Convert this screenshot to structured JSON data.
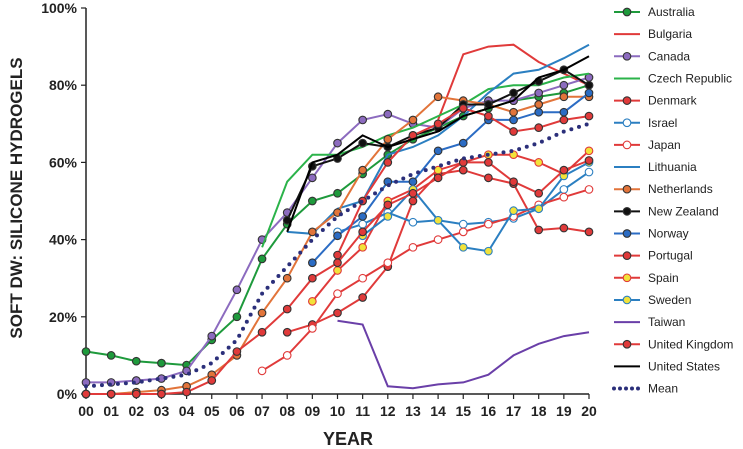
{
  "chart_data": {
    "type": "line",
    "xlabel": "YEAR",
    "ylabel": "SOFT DW: SILICONE HYDROGELS",
    "ylim": [
      0,
      100
    ],
    "y_ticks": [
      "0%",
      "20%",
      "40%",
      "60%",
      "80%",
      "100%"
    ],
    "categories": [
      "00",
      "01",
      "02",
      "03",
      "04",
      "05",
      "06",
      "07",
      "08",
      "09",
      "10",
      "11",
      "12",
      "13",
      "14",
      "15",
      "16",
      "17",
      "18",
      "19",
      "20"
    ],
    "grid": false,
    "legend_position": "right",
    "series": [
      {
        "name": "Australia",
        "color": "#1e9a3c",
        "marker": "circle",
        "values": [
          11,
          10,
          8.5,
          8,
          7.5,
          14,
          20,
          35,
          44,
          50,
          52,
          57,
          62,
          66,
          69,
          72,
          74,
          76,
          77,
          78,
          80
        ]
      },
      {
        "name": "Bulgaria",
        "color": "#e03a3a",
        "marker": "none",
        "values": [
          null,
          null,
          null,
          null,
          null,
          null,
          null,
          null,
          null,
          null,
          null,
          null,
          null,
          null,
          71,
          88,
          90,
          90.5,
          86,
          83,
          80
        ]
      },
      {
        "name": "Canada",
        "color": "#8c6bbf",
        "marker": "circle",
        "values": [
          3,
          3,
          3.5,
          4,
          6,
          15,
          27,
          40,
          47,
          56,
          65,
          71,
          72.5,
          70,
          69,
          74,
          76,
          76,
          78,
          80,
          82
        ]
      },
      {
        "name": "Czech Republic",
        "color": "#2bb34a",
        "marker": "none",
        "values": [
          null,
          null,
          null,
          null,
          null,
          null,
          null,
          38,
          55,
          62,
          62,
          64,
          67,
          69,
          72,
          75,
          79,
          80,
          80,
          82,
          83
        ]
      },
      {
        "name": "Denmark",
        "color": "#e03a3a",
        "marker": "circle",
        "values": [
          null,
          null,
          null,
          null,
          null,
          null,
          null,
          null,
          16,
          18,
          21,
          25,
          33,
          50,
          57,
          58,
          56,
          54.5,
          42.5,
          43,
          42
        ]
      },
      {
        "name": "Israel",
        "color": "#2b7fc1",
        "marker": "open-circle",
        "values": [
          null,
          null,
          null,
          null,
          null,
          null,
          null,
          null,
          null,
          null,
          42,
          44,
          47,
          44.5,
          45,
          44,
          44.5,
          45.5,
          48,
          53,
          57.5
        ]
      },
      {
        "name": "Japan",
        "color": "#e03a3a",
        "marker": "open-circle",
        "values": [
          null,
          null,
          null,
          null,
          null,
          null,
          null,
          6,
          10,
          17,
          26,
          30,
          34,
          38,
          40,
          42,
          44,
          46,
          49,
          51,
          53
        ]
      },
      {
        "name": "Lithuania",
        "color": "#2b7fc1",
        "marker": "none",
        "values": [
          null,
          null,
          null,
          null,
          null,
          null,
          null,
          null,
          42,
          41.5,
          48,
          50,
          62,
          64,
          67,
          72,
          78,
          83,
          84,
          87,
          90.5
        ]
      },
      {
        "name": "Netherlands",
        "color": "#e2743a",
        "marker": "circle",
        "values": [
          0,
          0,
          0.5,
          1,
          2,
          5,
          10,
          21,
          30,
          42,
          47,
          58,
          66,
          71,
          77,
          76,
          75,
          73,
          75,
          77,
          77
        ]
      },
      {
        "name": "New Zealand",
        "color": "#111111",
        "marker": "circle",
        "values": [
          null,
          null,
          null,
          null,
          null,
          null,
          null,
          null,
          45,
          59,
          61,
          65,
          64,
          67,
          69,
          75,
          75,
          78,
          81,
          84,
          80
        ]
      },
      {
        "name": "Norway",
        "color": "#2b6cc4",
        "marker": "circle",
        "values": [
          null,
          null,
          null,
          null,
          null,
          null,
          null,
          null,
          null,
          34,
          41,
          46,
          55,
          55,
          63,
          65,
          71,
          71,
          73,
          73,
          78
        ]
      },
      {
        "name": "Portugal",
        "color": "#e03a3a",
        "marker": "circle",
        "values": [
          null,
          null,
          null,
          null,
          null,
          null,
          null,
          null,
          null,
          null,
          36,
          50,
          60,
          67,
          70,
          74,
          72,
          68,
          69,
          71,
          72
        ]
      },
      {
        "name": "Spain",
        "color": "#e03a3a",
        "marker": "yellow-circle",
        "values": [
          null,
          null,
          null,
          null,
          null,
          null,
          null,
          null,
          null,
          24,
          32,
          38,
          50,
          53,
          58,
          60,
          62,
          62,
          60,
          57,
          63
        ]
      },
      {
        "name": "Sweden",
        "color": "#2b7fc1",
        "marker": "yellow-circle",
        "values": [
          null,
          null,
          null,
          null,
          null,
          null,
          null,
          null,
          null,
          null,
          null,
          41,
          46,
          53,
          45,
          38,
          37,
          47.5,
          48,
          56.5,
          60
        ]
      },
      {
        "name": "Taiwan",
        "color": "#6a3fa8",
        "marker": "none",
        "values": [
          null,
          null,
          null,
          null,
          null,
          null,
          null,
          null,
          null,
          null,
          19,
          18,
          2,
          1.5,
          2.5,
          3,
          5,
          10,
          13,
          15,
          16
        ]
      },
      {
        "name": "United Kingdom",
        "color": "#e03a3a",
        "marker": "circle",
        "values": [
          0,
          0,
          0,
          0,
          0.5,
          3.5,
          11,
          16,
          22,
          30,
          34,
          42,
          49,
          52,
          56,
          60,
          60,
          55,
          52,
          58,
          60.5
        ]
      },
      {
        "name": "United States",
        "color": "#000000",
        "marker": "none",
        "values": [
          null,
          null,
          null,
          null,
          null,
          null,
          null,
          null,
          42,
          60,
          62,
          67,
          64,
          66,
          68,
          72,
          74,
          76,
          82,
          84,
          87.5
        ]
      },
      {
        "name": "Mean",
        "color": "#2b2f7a",
        "marker": "dots",
        "values": [
          2,
          2.5,
          3,
          4,
          5,
          8,
          14,
          26,
          33,
          40,
          46,
          50,
          54,
          57,
          59,
          61,
          62,
          63,
          65,
          68,
          70
        ]
      }
    ]
  }
}
